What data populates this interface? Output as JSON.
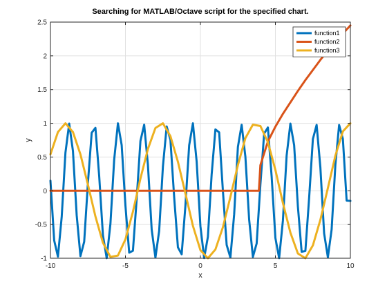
{
  "chart_data": {
    "type": "line",
    "title": "Searching for MATLAB/Octave script for the specified chart.",
    "xlabel": "x",
    "ylabel": "y",
    "xlim": [
      -10,
      10
    ],
    "ylim": [
      -1,
      2.5
    ],
    "xticks": [
      -10,
      -5,
      0,
      5,
      10
    ],
    "xtick_labels": [
      "-10",
      "-5",
      "0",
      "5",
      "10"
    ],
    "yticks": [
      -1,
      -0.5,
      0,
      0.5,
      1,
      1.5,
      2,
      2.5
    ],
    "ytick_labels": [
      "-1",
      "-0.5",
      "0",
      "0.5",
      "1",
      "1.5",
      "2",
      "2.5"
    ],
    "grid": true,
    "legend_position": "top-right",
    "series": [
      {
        "name": "function1",
        "color": "#0072BD",
        "x": [
          -10,
          -9.75,
          -9.5,
          -9.25,
          -9,
          -8.75,
          -8.5,
          -8.25,
          -8,
          -7.75,
          -7.5,
          -7.25,
          -7,
          -6.75,
          -6.5,
          -6.25,
          -6,
          -5.75,
          -5.5,
          -5.25,
          -5,
          -4.75,
          -4.5,
          -4.25,
          -4,
          -3.75,
          -3.5,
          -3.25,
          -3,
          -2.75,
          -2.5,
          -2.25,
          -2,
          -1.75,
          -1.5,
          -1.25,
          -1,
          -0.75,
          -0.5,
          -0.25,
          0,
          0.25,
          0.5,
          0.75,
          1,
          1.25,
          1.5,
          1.75,
          2,
          2.25,
          2.5,
          2.75,
          3,
          3.25,
          3.5,
          3.75,
          4,
          4.25,
          4.5,
          4.75,
          5,
          5.25,
          5.5,
          5.75,
          6,
          6.25,
          6.5,
          6.75,
          7,
          7.25,
          7.5,
          7.75,
          8,
          8.25,
          8.5,
          8.75,
          9,
          9.25,
          9.5,
          9.75,
          10
        ],
        "y": [
          0.149,
          -0.737,
          -0.976,
          -0.388,
          0.565,
          0.996,
          0.589,
          -0.363,
          -0.968,
          -0.755,
          0.122,
          0.86,
          0.932,
          0.219,
          -0.659,
          -0.999,
          -0.489,
          0.461,
          0.999,
          0.677,
          -0.217,
          -0.917,
          -0.889,
          -0.123,
          0.737,
          0.979,
          0.385,
          -0.573,
          -0.99,
          -0.595,
          0.361,
          0.953,
          0.757,
          -0.095,
          -0.838,
          -0.941,
          -0.219,
          0.674,
          1,
          0.433,
          -0.524,
          -0.997,
          -0.681,
          0.244,
          0.909,
          0.866,
          -0.003,
          -0.802,
          -0.99,
          -0.35,
          0.65,
          0.978,
          0.504,
          -0.426,
          -0.98,
          -0.781,
          0.093,
          0.847,
          0.938,
          0.211,
          -0.699,
          -0.999,
          -0.445,
          0.522,
          0.996,
          0.676,
          -0.232,
          -0.904,
          -0.892,
          -0.105,
          0.767,
          0.976,
          0.345,
          -0.632,
          -0.986,
          -0.573,
          0.385,
          0.975,
          0.769,
          -0.145,
          -0.15
        ]
      },
      {
        "name": "function2",
        "color": "#D95319",
        "x": [
          -10,
          -9,
          -8,
          -7,
          -6,
          -5,
          -4,
          -3,
          -2,
          -1,
          0,
          1,
          2,
          3,
          3.9,
          4,
          4.5,
          5,
          5.5,
          6,
          6.5,
          7,
          7.5,
          8,
          8.5,
          9,
          9.5,
          10
        ],
        "y": [
          0,
          0,
          0,
          0,
          0,
          0,
          0,
          0,
          0,
          0,
          0,
          0,
          0,
          0,
          0,
          0.38,
          0.73,
          0.95,
          1.14,
          1.31,
          1.48,
          1.64,
          1.79,
          1.94,
          2.08,
          2.21,
          2.33,
          2.45
        ]
      },
      {
        "name": "function3",
        "color": "#EDB120",
        "x": [
          -10,
          -9.5,
          -9,
          -8.5,
          -8,
          -7.5,
          -7,
          -6.5,
          -6,
          -5.5,
          -5,
          -4.5,
          -4,
          -3.5,
          -3,
          -2.5,
          -2,
          -1.5,
          -1,
          -0.5,
          0,
          0.5,
          1,
          1.5,
          2,
          2.5,
          3,
          3.5,
          4,
          4.5,
          5,
          5.5,
          6,
          6.5,
          7,
          7.5,
          8,
          8.5,
          9,
          9.5,
          10
        ],
        "y": [
          0.54,
          0.87,
          1.0,
          0.87,
          0.54,
          0.09,
          -0.38,
          -0.77,
          -0.98,
          -0.96,
          -0.72,
          -0.31,
          0.18,
          0.62,
          0.93,
          1.0,
          0.81,
          0.43,
          -0.04,
          -0.52,
          -0.88,
          -1.0,
          -0.87,
          -0.54,
          -0.09,
          0.38,
          0.78,
          0.98,
          0.96,
          0.72,
          0.31,
          -0.18,
          -0.62,
          -0.93,
          -1.0,
          -0.81,
          -0.43,
          0.04,
          0.52,
          0.88,
          1.0
        ]
      }
    ]
  }
}
